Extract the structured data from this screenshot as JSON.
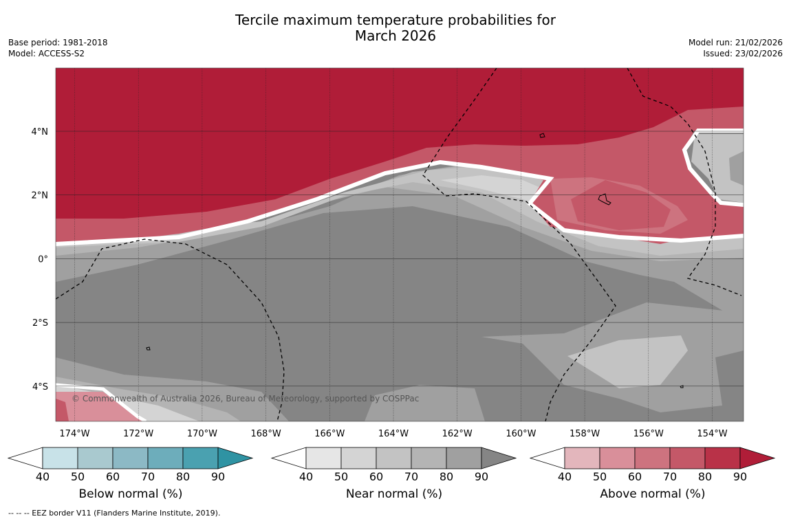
{
  "title": {
    "line1": "Tercile maximum temperature probabilities for",
    "line2": "March 2026"
  },
  "meta_left": {
    "base_period": "Base period: 1981-2018",
    "model": "Model: ACCESS-S2"
  },
  "meta_right": {
    "model_run": "Model run: 21/02/2026",
    "issued": "Issued: 23/02/2026"
  },
  "map": {
    "lon_labels": [
      "174°W",
      "172°W",
      "170°W",
      "168°W",
      "166°W",
      "164°W",
      "162°W",
      "160°W",
      "158°W",
      "156°W",
      "154°W"
    ],
    "lat_labels": [
      "4°N",
      "2°N",
      "0°",
      "2°S",
      "4°S"
    ],
    "copyright": "© Commonwealth of Australia 2026, Bureau of Meteorology, supported by COSPPac"
  },
  "colorbars": [
    {
      "label": "Below normal (%)",
      "ticks": [
        "40",
        "50",
        "60",
        "70",
        "80",
        "90"
      ],
      "colors": [
        "#ffffff",
        "#c8e2e8",
        "#a9c9cf",
        "#8cb9c5",
        "#6dadbb",
        "#4aa1b0",
        "#2f93a3"
      ]
    },
    {
      "label": "Near normal (%)",
      "ticks": [
        "40",
        "50",
        "60",
        "70",
        "80",
        "90"
      ],
      "colors": [
        "#ffffff",
        "#e6e6e6",
        "#d4d4d4",
        "#c3c3c3",
        "#b4b4b4",
        "#a0a0a0",
        "#858585"
      ]
    },
    {
      "label": "Above normal (%)",
      "ticks": [
        "40",
        "50",
        "60",
        "70",
        "80",
        "90"
      ],
      "colors": [
        "#ffffff",
        "#e3b6bc",
        "#d98f9a",
        "#cd737f",
        "#c45868",
        "#b93248",
        "#b01d38"
      ]
    }
  ],
  "footnote": "--  --  -- EEZ border V11 (Flanders Marine Institute, 2019)."
}
